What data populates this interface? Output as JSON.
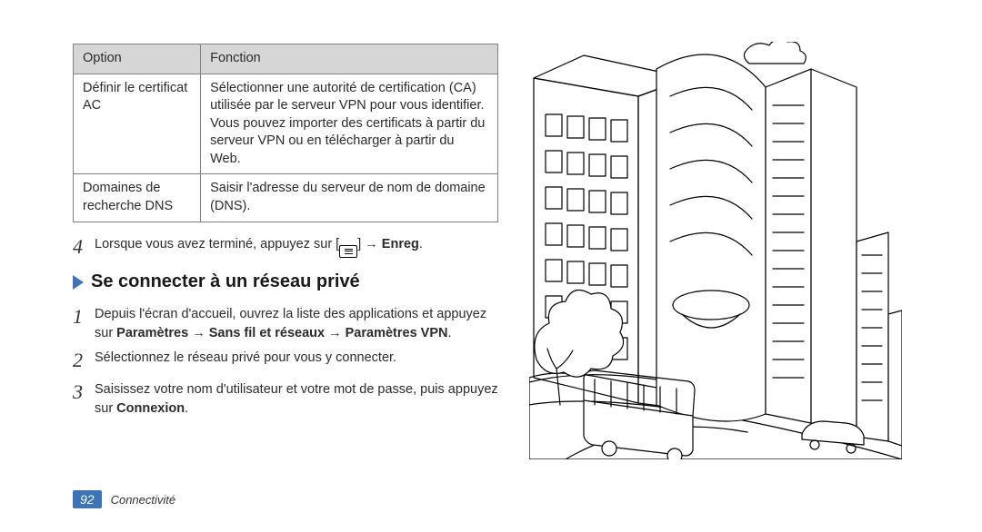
{
  "table": {
    "headers": {
      "option": "Option",
      "fonction": "Fonction"
    },
    "rows": [
      {
        "option": "Définir le certificat AC",
        "fonction": "Sélectionner une autorité de certification (CA) utilisée par le serveur VPN pour vous identifier. Vous pouvez importer des certificats à partir du serveur VPN ou en télécharger à partir du Web."
      },
      {
        "option": "Domaines de recherche DNS",
        "fonction": "Saisir l'adresse du serveur de nom de domaine (DNS)."
      }
    ]
  },
  "step4": {
    "num": "4",
    "text_before": "Lorsque vous avez terminé, appuyez sur [",
    "text_after": "] → ",
    "bold": "Enreg",
    "end": "."
  },
  "section_title": "Se connecter à un réseau privé",
  "steps": [
    {
      "num": "1",
      "parts": [
        {
          "t": "Depuis l'écran d'accueil, ouvrez la liste des applications et appuyez sur "
        },
        {
          "t": "Paramètres",
          "b": true
        },
        {
          "t": " → "
        },
        {
          "t": "Sans fil et réseaux",
          "b": true
        },
        {
          "t": " → "
        },
        {
          "t": "Paramètres VPN",
          "b": true
        },
        {
          "t": "."
        }
      ]
    },
    {
      "num": "2",
      "parts": [
        {
          "t": "Sélectionnez le réseau privé pour vous y connecter."
        }
      ]
    },
    {
      "num": "3",
      "parts": [
        {
          "t": "Saisissez votre nom d'utilisateur et votre mot de passe, puis appuyez sur "
        },
        {
          "t": "Connexion",
          "b": true
        },
        {
          "t": "."
        }
      ]
    }
  ],
  "footer": {
    "page": "92",
    "label": "Connectivité"
  },
  "colors": {
    "accent": "#3b74b8",
    "header_bg": "#d6d6d6",
    "border": "#808080",
    "text": "#2b2b2b"
  }
}
